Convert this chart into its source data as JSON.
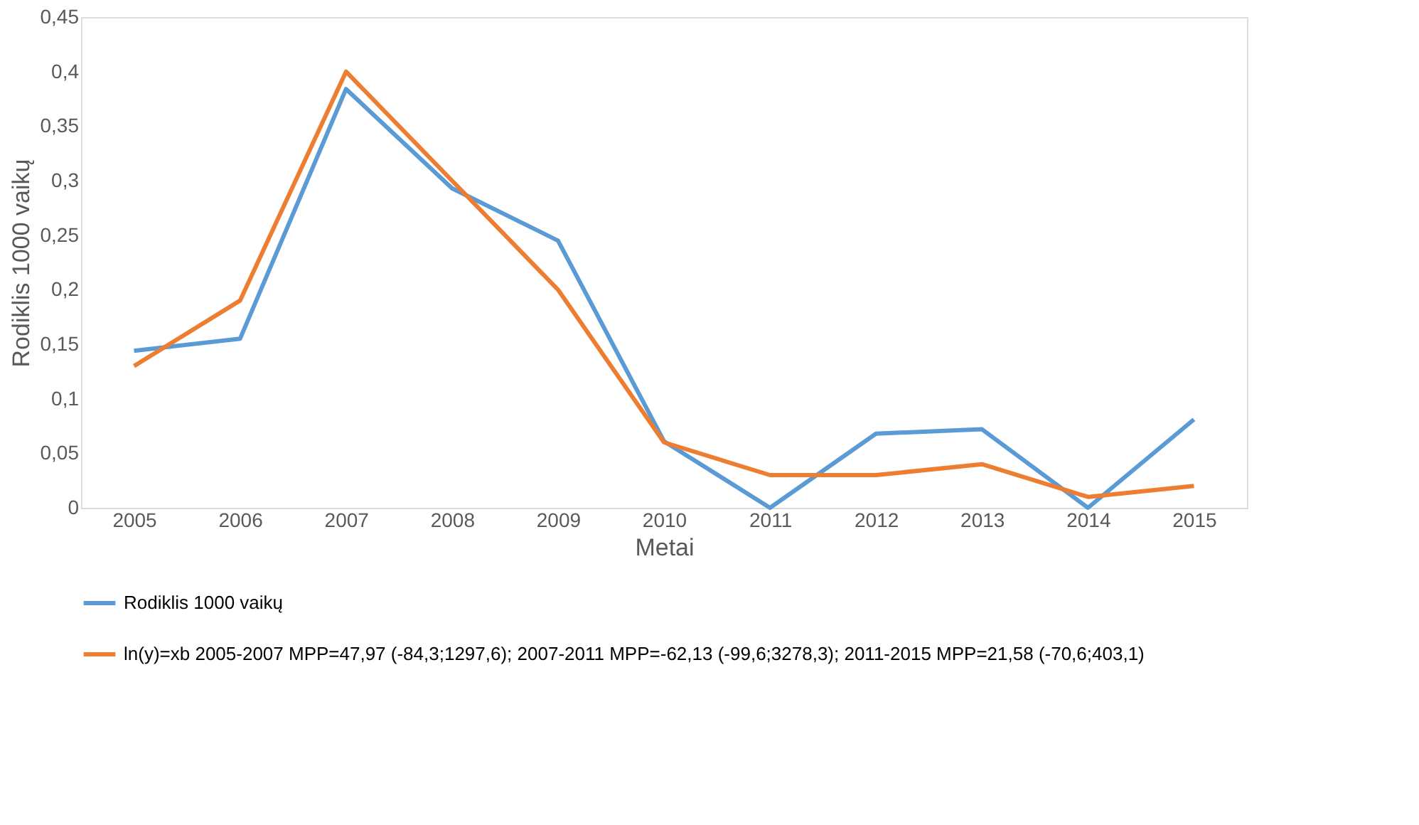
{
  "chart_data": {
    "type": "line",
    "xlabel": "Metai",
    "ylabel": "Rodiklis 1000 vaikų",
    "categories": [
      "2005",
      "2006",
      "2007",
      "2008",
      "2009",
      "2010",
      "2011",
      "2012",
      "2013",
      "2014",
      "2015"
    ],
    "series": [
      {
        "name": "Rodiklis 1000 vaikų",
        "color": "#5b9bd5",
        "values": [
          0.144,
          0.155,
          0.384,
          0.293,
          0.245,
          0.061,
          0,
          0.068,
          0.072,
          0,
          0.081
        ]
      },
      {
        "name": "ln(y)=xb 2005-2007 MPP=47,97 (-84,3;1297,6); 2007-2011 MPP=-62,13 (-99,6;3278,3); 2011-2015 MPP=21,58 (-70,6;403,1)",
        "color": "#ed7d31",
        "values": [
          0.13,
          0.19,
          0.4,
          0.3,
          0.2,
          0.06,
          0.03,
          0.03,
          0.04,
          0.01,
          0.02
        ]
      }
    ],
    "ylim": [
      0,
      0.45
    ],
    "yticks": [
      0,
      {
        "value": 0.05,
        "label": "0,05"
      },
      {
        "value": 0.1,
        "label": "0,1"
      },
      {
        "value": 0.15,
        "label": "0,15"
      },
      {
        "value": 0.2,
        "label": "0,2"
      },
      {
        "value": 0.25,
        "label": "0,25"
      },
      {
        "value": 0.3,
        "label": "0,3"
      },
      {
        "value": 0.35,
        "label": "0,35"
      },
      {
        "value": 0.4,
        "label": "0,4"
      },
      {
        "value": 0.45,
        "label": "0,45"
      }
    ],
    "grid": false,
    "legend": "bottom",
    "marker": "none",
    "line_style": "solid"
  }
}
